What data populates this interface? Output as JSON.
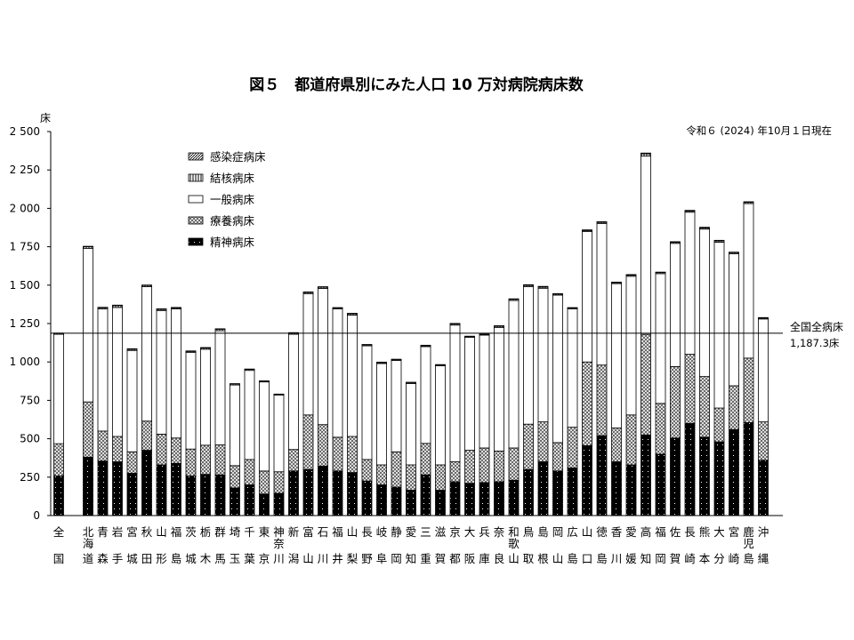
{
  "chart_data": {
    "type": "bar",
    "stacked": true,
    "title": "図５　都道府県別にみた人口 10 万対病院病床数",
    "date_note": "令和６ (2024) 年10月１日現在",
    "ylabel": "床",
    "ylim": [
      0,
      2500
    ],
    "yticks": [
      0,
      250,
      500,
      750,
      1000,
      1250,
      1500,
      1750,
      2000,
      2250,
      2500
    ],
    "ytick_labels": [
      "0",
      "250",
      "500",
      "750",
      "1 000",
      "1 250",
      "1 500",
      "1 750",
      "2 000",
      "2 250",
      "2 500"
    ],
    "grid": false,
    "legend_position": "top-left",
    "reference_line": {
      "value": 1187.3,
      "label": "全国全病床",
      "value_label": "1,187.3床"
    },
    "categories": [
      [
        "全",
        "",
        "国"
      ],
      [
        "北",
        "海",
        "道"
      ],
      [
        "青",
        "",
        "森"
      ],
      [
        "岩",
        "",
        "手"
      ],
      [
        "宮",
        "",
        "城"
      ],
      [
        "秋",
        "",
        "田"
      ],
      [
        "山",
        "",
        "形"
      ],
      [
        "福",
        "",
        "島"
      ],
      [
        "茨",
        "",
        "城"
      ],
      [
        "栃",
        "",
        "木"
      ],
      [
        "群",
        "",
        "馬"
      ],
      [
        "埼",
        "",
        "玉"
      ],
      [
        "千",
        "",
        "葉"
      ],
      [
        "東",
        "",
        "京"
      ],
      [
        "神",
        "奈",
        "川"
      ],
      [
        "新",
        "",
        "潟"
      ],
      [
        "富",
        "",
        "山"
      ],
      [
        "石",
        "",
        "川"
      ],
      [
        "福",
        "",
        "井"
      ],
      [
        "山",
        "",
        "梨"
      ],
      [
        "長",
        "",
        "野"
      ],
      [
        "岐",
        "",
        "阜"
      ],
      [
        "静",
        "",
        "岡"
      ],
      [
        "愛",
        "",
        "知"
      ],
      [
        "三",
        "",
        "重"
      ],
      [
        "滋",
        "",
        "賀"
      ],
      [
        "京",
        "",
        "都"
      ],
      [
        "大",
        "",
        "阪"
      ],
      [
        "兵",
        "",
        "庫"
      ],
      [
        "奈",
        "",
        "良"
      ],
      [
        "和",
        "歌",
        "山"
      ],
      [
        "鳥",
        "",
        "取"
      ],
      [
        "島",
        "",
        "根"
      ],
      [
        "岡",
        "",
        "山"
      ],
      [
        "広",
        "",
        "島"
      ],
      [
        "山",
        "",
        "口"
      ],
      [
        "徳",
        "",
        "島"
      ],
      [
        "香",
        "",
        "川"
      ],
      [
        "愛",
        "",
        "媛"
      ],
      [
        "高",
        "",
        "知"
      ],
      [
        "福",
        "",
        "岡"
      ],
      [
        "佐",
        "",
        "賀"
      ],
      [
        "長",
        "",
        "崎"
      ],
      [
        "熊",
        "",
        "本"
      ],
      [
        "大",
        "",
        "分"
      ],
      [
        "宮",
        "",
        "崎"
      ],
      [
        "鹿",
        "児",
        "島"
      ],
      [
        "沖",
        "",
        "縄"
      ]
    ],
    "series": [
      {
        "name": "精神病床",
        "pattern": "dots-on-black",
        "values": [
          258,
          380,
          355,
          350,
          275,
          425,
          330,
          340,
          258,
          268,
          265,
          180,
          200,
          140,
          145,
          290,
          300,
          322,
          290,
          280,
          225,
          200,
          185,
          165,
          265,
          165,
          220,
          210,
          215,
          220,
          230,
          300,
          350,
          290,
          310,
          455,
          520,
          350,
          330,
          525,
          400,
          505,
          600,
          510,
          480,
          560,
          605,
          360
        ]
      },
      {
        "name": "療養病床",
        "pattern": "crosshatch",
        "values": [
          210,
          360,
          195,
          165,
          140,
          190,
          200,
          165,
          175,
          190,
          195,
          145,
          165,
          150,
          140,
          140,
          355,
          270,
          220,
          235,
          140,
          130,
          230,
          165,
          205,
          165,
          130,
          215,
          225,
          200,
          210,
          295,
          260,
          185,
          265,
          545,
          460,
          220,
          325,
          655,
          330,
          465,
          450,
          395,
          220,
          285,
          420,
          250
        ]
      },
      {
        "name": "一般病床",
        "pattern": "white",
        "values": [
          712,
          1000,
          795,
          840,
          660,
          875,
          805,
          840,
          630,
          625,
          743,
          525,
          580,
          580,
          500,
          750,
          790,
          887,
          835,
          790,
          740,
          660,
          595,
          530,
          630,
          645,
          890,
          735,
          735,
          805,
          960,
          896,
          870,
          960,
          770,
          850,
          922,
          940,
          903,
          1160,
          845,
          802,
          925,
          960,
          1080,
          860,
          1006,
          670
        ]
      },
      {
        "name": "結核病床",
        "pattern": "vertical-lines",
        "values": [
          6,
          10,
          8,
          12,
          8,
          8,
          8,
          7,
          6,
          8,
          10,
          7,
          7,
          5,
          4,
          8,
          8,
          8,
          6,
          8,
          6,
          6,
          6,
          6,
          6,
          5,
          8,
          6,
          5,
          8,
          8,
          8,
          8,
          7,
          6,
          6,
          7,
          6,
          7,
          15,
          7,
          7,
          8,
          8,
          8,
          7,
          8,
          6
        ]
      },
      {
        "name": "感染症病床",
        "pattern": "diagonal",
        "values": [
          2,
          3,
          3,
          3,
          3,
          3,
          3,
          3,
          3,
          3,
          3,
          2,
          2,
          2,
          2,
          3,
          3,
          3,
          3,
          4,
          3,
          3,
          2,
          2,
          3,
          3,
          3,
          2,
          2,
          3,
          3,
          4,
          4,
          3,
          3,
          4,
          4,
          4,
          4,
          5,
          3,
          4,
          4,
          4,
          4,
          3,
          4,
          3
        ]
      }
    ],
    "legend_order": [
      "感染症病床",
      "結核病床",
      "一般病床",
      "療養病床",
      "精神病床"
    ]
  }
}
